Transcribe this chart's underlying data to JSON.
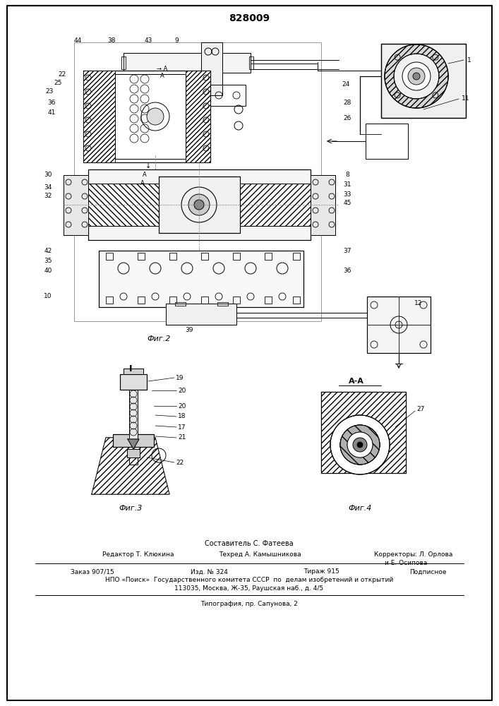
{
  "title": "828009",
  "fig2_label": "Фиг.2",
  "fig3_label": "Фиг.3",
  "fig4_label": "Фиг.4",
  "fig4_title": "А-А",
  "footer_composer": "Составитель С. Фатеева",
  "footer_editor": "Редактор Т. Клюкина",
  "footer_techred": "Техред А. Камышникова",
  "footer_correctors": "Корректоры: Л. Орлова",
  "footer_correctors2": "и Е. Осипова",
  "footer_order": "Заказ 907/15",
  "footer_izd": "Изд. № 324",
  "footer_tirazh": "Тираж 915",
  "footer_podp": "Подписное",
  "footer_npo": "НПО «Поиск»  Государственного комитета СССР  по  делам изобретений и открытий",
  "footer_addr": "113035, Москва, Ж-35, Раушская наб., д. 4/5",
  "footer_typo": "Типография, пр. Сапунова, 2",
  "bg": "#ffffff",
  "lc": "#000000"
}
